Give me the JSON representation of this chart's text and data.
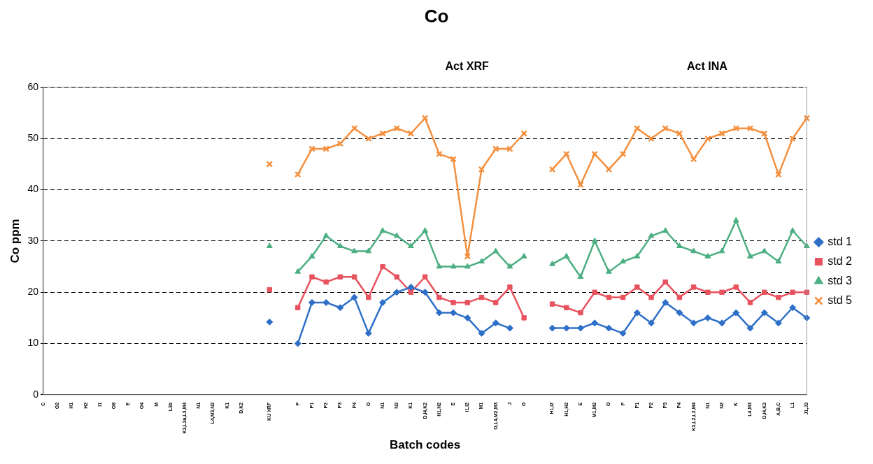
{
  "chart_data": {
    "type": "line",
    "title": "Co",
    "xlabel": "Batch codes",
    "ylabel": "Co ppm",
    "annotations": [
      "Act XRF",
      "Act INA"
    ],
    "categories": [
      "C",
      "O2",
      "H1",
      "H2",
      "I1",
      "O8",
      "E",
      "O4",
      "M",
      "L3b",
      "K3,L3a,L3,M4",
      "N1",
      "L4,M3,N2",
      "K1",
      "D,K2",
      null,
      "KU XRF",
      null,
      "P",
      "P1",
      "P2",
      "P3",
      "P4",
      "O",
      "N1",
      "N2",
      "K1",
      "D,I4,K2",
      "H1,H2",
      "E",
      "I1,I2",
      "M1",
      "O,L4,M2,M3",
      "J",
      "O",
      null,
      "H1,I2",
      "H1,H2",
      "E",
      "M1,M2",
      "O",
      "P",
      "P1",
      "P2",
      "P3",
      "P4",
      "K3,L2,L3,M4",
      "N1",
      "N2",
      "K",
      "L4,M3",
      "D,I4,K2",
      "A,B,C",
      "L1",
      "J1,J2"
    ],
    "series": [
      {
        "name": "std 1",
        "color": "#2e6fc8",
        "marker": "diamond",
        "values": [
          null,
          null,
          null,
          null,
          null,
          null,
          null,
          null,
          null,
          null,
          null,
          null,
          null,
          null,
          null,
          null,
          14.2,
          null,
          10,
          18,
          18,
          17,
          19,
          12,
          18,
          20,
          21,
          20,
          16,
          16,
          15,
          12,
          14,
          13,
          null,
          null,
          13,
          13,
          13,
          14,
          13,
          12,
          16,
          14,
          18,
          16,
          14,
          15,
          14,
          16,
          13,
          16,
          14,
          17,
          15
        ]
      },
      {
        "name": "std 2",
        "color": "#e8525e",
        "marker": "square",
        "values": [
          null,
          null,
          null,
          null,
          null,
          null,
          null,
          null,
          null,
          null,
          null,
          null,
          null,
          null,
          null,
          null,
          20.5,
          null,
          17,
          23,
          22,
          23,
          23,
          19,
          25,
          23,
          20,
          23,
          19,
          18,
          18,
          19,
          18,
          21,
          15,
          null,
          17.7,
          17,
          16,
          20,
          19,
          19,
          21,
          19,
          22,
          19,
          21,
          20,
          20,
          21,
          18,
          20,
          19,
          20,
          20
        ]
      },
      {
        "name": "std 3",
        "color": "#4caf82",
        "marker": "triangle",
        "values": [
          null,
          null,
          null,
          null,
          null,
          null,
          null,
          null,
          null,
          null,
          null,
          null,
          null,
          null,
          null,
          null,
          29,
          null,
          24,
          27,
          31,
          29,
          28,
          28,
          32,
          31,
          29,
          32,
          25,
          25,
          25,
          26,
          28,
          25,
          27,
          null,
          25.5,
          27,
          23,
          30,
          24,
          26,
          27,
          31,
          32,
          29,
          28,
          27,
          28,
          34,
          27,
          28,
          26,
          32,
          29
        ]
      },
      {
        "name": "std 5",
        "color": "#f39040",
        "marker": "cross",
        "values": [
          null,
          null,
          null,
          null,
          null,
          null,
          null,
          null,
          null,
          null,
          null,
          null,
          null,
          null,
          null,
          null,
          45,
          null,
          43,
          48,
          48,
          49,
          52,
          50,
          51,
          52,
          51,
          54,
          47,
          46,
          27,
          44,
          48,
          48,
          51,
          null,
          44,
          47,
          41,
          47,
          44,
          47,
          52,
          50,
          52,
          51,
          46,
          50,
          51,
          52,
          52,
          51,
          43,
          50,
          54
        ]
      }
    ],
    "ylim": [
      0,
      60
    ],
    "yticks": [
      0,
      10,
      20,
      30,
      40,
      50,
      60
    ],
    "grid": "y",
    "legend": "right",
    "line_style": "solid"
  }
}
